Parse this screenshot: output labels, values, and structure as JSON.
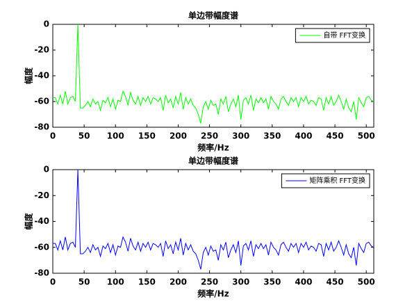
{
  "chart_data": [
    {
      "type": "line",
      "title": "单边带幅度谱",
      "xlabel": "频率/Hz",
      "ylabel": "幅度",
      "x": [
        0,
        4,
        8,
        12,
        16,
        20,
        24,
        28,
        32,
        36,
        40,
        44,
        48,
        52,
        56,
        60,
        64,
        68,
        72,
        76,
        80,
        84,
        88,
        92,
        96,
        100,
        104,
        108,
        112,
        116,
        120,
        124,
        128,
        132,
        136,
        140,
        144,
        148,
        152,
        156,
        160,
        164,
        168,
        172,
        176,
        180,
        184,
        188,
        192,
        196,
        200,
        204,
        208,
        212,
        216,
        220,
        224,
        228,
        232,
        236,
        240,
        244,
        248,
        252,
        256,
        260,
        264,
        268,
        272,
        276,
        280,
        284,
        288,
        292,
        296,
        300,
        304,
        308,
        312,
        316,
        320,
        324,
        328,
        332,
        336,
        340,
        344,
        348,
        352,
        356,
        360,
        364,
        368,
        372,
        376,
        380,
        384,
        388,
        392,
        396,
        400,
        404,
        408,
        412,
        416,
        420,
        424,
        428,
        432,
        436,
        440,
        444,
        448,
        452,
        456,
        460,
        464,
        468,
        472,
        476,
        480,
        484,
        488,
        492,
        496,
        500,
        504,
        508,
        512
      ],
      "series": [
        {
          "name": "自带 FFT变换",
          "color": "#00ff00",
          "values": [
            -57,
            -57,
            -62,
            -55,
            -62,
            -52,
            -62,
            -57,
            -56,
            -60,
            0,
            -65,
            -65,
            -63,
            -60,
            -64,
            -58,
            -62,
            -60,
            -67,
            -59,
            -61,
            -57,
            -64,
            -58,
            -66,
            -59,
            -60,
            -52,
            -56,
            -63,
            -53,
            -59,
            -62,
            -56,
            -63,
            -57,
            -60,
            -56,
            -62,
            -57,
            -58,
            -60,
            -57,
            -67,
            -55,
            -61,
            -58,
            -65,
            -56,
            -62,
            -53,
            -66,
            -57,
            -62,
            -58,
            -63,
            -65,
            -70,
            -77,
            -64,
            -60,
            -66,
            -59,
            -63,
            -62,
            -70,
            -58,
            -62,
            -56,
            -68,
            -62,
            -58,
            -64,
            -55,
            -74,
            -59,
            -57,
            -62,
            -55,
            -67,
            -58,
            -61,
            -57,
            -61,
            -58,
            -66,
            -56,
            -60,
            -62,
            -66,
            -58,
            -56,
            -60,
            -63,
            -57,
            -60,
            -57,
            -64,
            -57,
            -60,
            -56,
            -62,
            -59,
            -60,
            -63,
            -57,
            -58,
            -67,
            -57,
            -62,
            -56,
            -63,
            -60,
            -55,
            -60,
            -66,
            -58,
            -65,
            -68,
            -60,
            -74,
            -57,
            -61,
            -64,
            -57,
            -56,
            -59,
            -60
          ]
        }
      ],
      "xlim": [
        0,
        512
      ],
      "ylim": [
        -80,
        0
      ],
      "xticks": [
        0,
        50,
        100,
        150,
        200,
        250,
        300,
        350,
        400,
        450,
        500
      ],
      "yticks": [
        0,
        -20,
        -40,
        -60,
        -80
      ],
      "legend": "upper right"
    },
    {
      "type": "line",
      "title": "单边带幅度谱",
      "xlabel": "频率/Hz",
      "ylabel": "幅度",
      "x": [
        0,
        4,
        8,
        12,
        16,
        20,
        24,
        28,
        32,
        36,
        40,
        44,
        48,
        52,
        56,
        60,
        64,
        68,
        72,
        76,
        80,
        84,
        88,
        92,
        96,
        100,
        104,
        108,
        112,
        116,
        120,
        124,
        128,
        132,
        136,
        140,
        144,
        148,
        152,
        156,
        160,
        164,
        168,
        172,
        176,
        180,
        184,
        188,
        192,
        196,
        200,
        204,
        208,
        212,
        216,
        220,
        224,
        228,
        232,
        236,
        240,
        244,
        248,
        252,
        256,
        260,
        264,
        268,
        272,
        276,
        280,
        284,
        288,
        292,
        296,
        300,
        304,
        308,
        312,
        316,
        320,
        324,
        328,
        332,
        336,
        340,
        344,
        348,
        352,
        356,
        360,
        364,
        368,
        372,
        376,
        380,
        384,
        388,
        392,
        396,
        400,
        404,
        408,
        412,
        416,
        420,
        424,
        428,
        432,
        436,
        440,
        444,
        448,
        452,
        456,
        460,
        464,
        468,
        472,
        476,
        480,
        484,
        488,
        492,
        496,
        500,
        504,
        508,
        512
      ],
      "series": [
        {
          "name": "矩阵乘积 FFT变换",
          "color": "#0000ff",
          "values": [
            -57,
            -57,
            -62,
            -55,
            -62,
            -52,
            -62,
            -57,
            -56,
            -60,
            0,
            -65,
            -65,
            -63,
            -60,
            -64,
            -58,
            -62,
            -60,
            -67,
            -59,
            -61,
            -57,
            -64,
            -58,
            -66,
            -59,
            -60,
            -52,
            -56,
            -63,
            -53,
            -59,
            -62,
            -56,
            -63,
            -57,
            -60,
            -56,
            -62,
            -57,
            -58,
            -60,
            -57,
            -67,
            -55,
            -61,
            -58,
            -65,
            -56,
            -62,
            -53,
            -66,
            -57,
            -62,
            -58,
            -63,
            -65,
            -70,
            -77,
            -64,
            -60,
            -66,
            -59,
            -63,
            -62,
            -70,
            -58,
            -62,
            -56,
            -68,
            -62,
            -58,
            -64,
            -55,
            -74,
            -59,
            -57,
            -62,
            -55,
            -67,
            -58,
            -61,
            -57,
            -61,
            -58,
            -66,
            -56,
            -60,
            -62,
            -66,
            -58,
            -56,
            -60,
            -63,
            -57,
            -60,
            -57,
            -64,
            -57,
            -60,
            -56,
            -62,
            -59,
            -60,
            -63,
            -57,
            -58,
            -67,
            -57,
            -62,
            -56,
            -63,
            -60,
            -55,
            -60,
            -66,
            -58,
            -65,
            -68,
            -60,
            -74,
            -57,
            -61,
            -64,
            -57,
            -56,
            -59,
            -60
          ]
        }
      ],
      "xlim": [
        0,
        512
      ],
      "ylim": [
        -80,
        0
      ],
      "xticks": [
        0,
        50,
        100,
        150,
        200,
        250,
        300,
        350,
        400,
        450,
        500
      ],
      "yticks": [
        0,
        -20,
        -40,
        -60,
        -80
      ],
      "legend": "upper right"
    }
  ]
}
